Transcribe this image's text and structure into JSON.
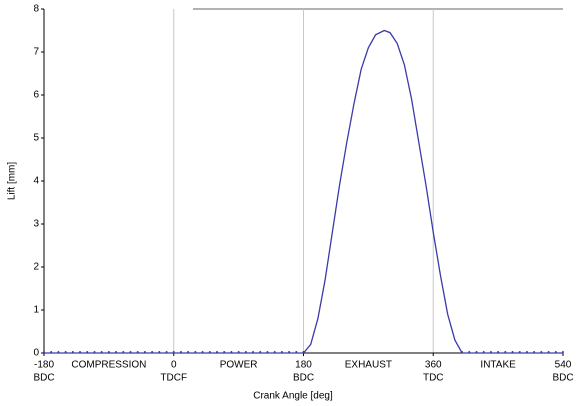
{
  "chart_data": {
    "type": "line",
    "x_label": "Crank Angle [deg]",
    "y_label": "Lift [mm]",
    "x": [
      -180,
      -170,
      -160,
      -150,
      -140,
      -130,
      -120,
      -110,
      -100,
      -90,
      -80,
      -70,
      -60,
      -50,
      -40,
      -30,
      -20,
      -10,
      0,
      10,
      20,
      30,
      40,
      50,
      60,
      70,
      80,
      90,
      100,
      110,
      120,
      130,
      140,
      150,
      160,
      170,
      180,
      190,
      200,
      210,
      220,
      230,
      240,
      250,
      260,
      270,
      280,
      292,
      300,
      310,
      320,
      330,
      340,
      350,
      360,
      370,
      380,
      390,
      400,
      410,
      420,
      430,
      440,
      450,
      460,
      470,
      480,
      490,
      500,
      510,
      520,
      530,
      540
    ],
    "series": [
      {
        "color": "#3b3aa8",
        "values": [
          0,
          0,
          0,
          0,
          0,
          0,
          0,
          0,
          0,
          0,
          0,
          0,
          0,
          0,
          0,
          0,
          0,
          0,
          0,
          0,
          0,
          0,
          0,
          0,
          0,
          0,
          0,
          0,
          0,
          0,
          0,
          0,
          0,
          0,
          0,
          0,
          0,
          0.2,
          0.8,
          1.7,
          2.8,
          3.9,
          4.9,
          5.8,
          6.6,
          7.1,
          7.4,
          7.5,
          7.45,
          7.2,
          6.7,
          5.9,
          4.9,
          3.9,
          2.8,
          1.8,
          0.9,
          0.3,
          0,
          0,
          0,
          0,
          0,
          0,
          0,
          0,
          0,
          0,
          0,
          0,
          0,
          0,
          0
        ]
      }
    ],
    "xlim": [
      -180,
      540
    ],
    "xticks": [
      -180,
      0,
      180,
      360,
      540
    ],
    "xtick_sublabels": [
      "BDC",
      "TDCF",
      "BDC",
      "TDC",
      "BDC"
    ],
    "phases": [
      {
        "x": -90,
        "label": "COMPRESSION"
      },
      {
        "x": 90,
        "label": "POWER"
      },
      {
        "x": 270,
        "label": "EXHAUST"
      },
      {
        "x": 450,
        "label": "INTAKE"
      }
    ],
    "ylim": [
      0,
      8
    ],
    "yticks": [
      0,
      1,
      2,
      3,
      4,
      5,
      6,
      7,
      8
    ],
    "grid": "x"
  }
}
